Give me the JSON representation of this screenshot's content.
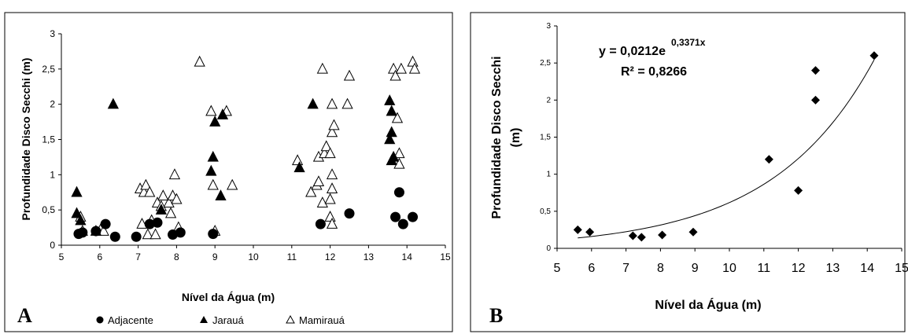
{
  "chart_data": [
    {
      "panel": "A",
      "type": "scatter",
      "xlabel": "Nível da Água (m)",
      "ylabel": "Profundidade Disco Secchi (m)",
      "xlim": [
        5,
        15
      ],
      "ylim": [
        0,
        3
      ],
      "x_ticks": [
        "5",
        "6",
        "7",
        "8",
        "9",
        "10",
        "11",
        "12",
        "13",
        "14",
        "15"
      ],
      "y_ticks": [
        "0",
        "0,5",
        "1",
        "1,5",
        "2",
        "2,5",
        "3"
      ],
      "legend_position": "bottom",
      "grid": false,
      "series": [
        {
          "name": "Adjacente",
          "marker": "circle",
          "points": [
            [
              5.45,
              0.16
            ],
            [
              5.55,
              0.18
            ],
            [
              5.9,
              0.2
            ],
            [
              6.15,
              0.3
            ],
            [
              6.4,
              0.12
            ],
            [
              6.95,
              0.12
            ],
            [
              7.3,
              0.3
            ],
            [
              7.5,
              0.32
            ],
            [
              7.9,
              0.15
            ],
            [
              8.1,
              0.18
            ],
            [
              8.95,
              0.16
            ],
            [
              11.75,
              0.3
            ],
            [
              12.5,
              0.45
            ],
            [
              13.7,
              0.4
            ],
            [
              13.8,
              0.75
            ],
            [
              13.9,
              0.3
            ],
            [
              14.15,
              0.4
            ]
          ]
        },
        {
          "name": "Jarauá",
          "marker": "filled-triangle",
          "points": [
            [
              5.4,
              0.75
            ],
            [
              5.4,
              0.45
            ],
            [
              5.5,
              0.35
            ],
            [
              5.9,
              0.2
            ],
            [
              6.35,
              2.0
            ],
            [
              7.6,
              0.5
            ],
            [
              8.9,
              1.05
            ],
            [
              8.95,
              1.25
            ],
            [
              9.0,
              1.75
            ],
            [
              9.15,
              0.7
            ],
            [
              9.2,
              1.85
            ],
            [
              11.2,
              1.1
            ],
            [
              11.55,
              2.0
            ],
            [
              13.55,
              2.05
            ],
            [
              13.6,
              1.9
            ],
            [
              13.55,
              1.5
            ],
            [
              13.6,
              1.6
            ],
            [
              13.6,
              1.2
            ],
            [
              13.65,
              1.25
            ]
          ]
        },
        {
          "name": "Mamirauá",
          "marker": "open-triangle",
          "points": [
            [
              5.5,
              0.4
            ],
            [
              5.55,
              0.2
            ],
            [
              6.05,
              0.25
            ],
            [
              6.1,
              0.2
            ],
            [
              7.05,
              0.8
            ],
            [
              7.15,
              0.75
            ],
            [
              7.2,
              0.85
            ],
            [
              7.3,
              0.75
            ],
            [
              7.1,
              0.3
            ],
            [
              7.25,
              0.15
            ],
            [
              7.35,
              0.35
            ],
            [
              7.45,
              0.15
            ],
            [
              7.5,
              0.6
            ],
            [
              7.6,
              0.55
            ],
            [
              7.65,
              0.7
            ],
            [
              7.8,
              0.6
            ],
            [
              7.85,
              0.45
            ],
            [
              7.9,
              0.7
            ],
            [
              7.95,
              1.0
            ],
            [
              8.0,
              0.65
            ],
            [
              8.05,
              0.25
            ],
            [
              8.6,
              2.6
            ],
            [
              8.9,
              1.9
            ],
            [
              8.95,
              0.85
            ],
            [
              9.0,
              0.2
            ],
            [
              9.3,
              1.9
            ],
            [
              9.45,
              0.85
            ],
            [
              11.15,
              1.2
            ],
            [
              11.5,
              0.75
            ],
            [
              11.65,
              0.85
            ],
            [
              11.7,
              0.9
            ],
            [
              11.7,
              1.25
            ],
            [
              11.8,
              2.5
            ],
            [
              11.85,
              1.3
            ],
            [
              11.8,
              0.6
            ],
            [
              11.9,
              1.4
            ],
            [
              12.0,
              0.65
            ],
            [
              12.0,
              1.3
            ],
            [
              12.05,
              2.0
            ],
            [
              12.05,
              1.6
            ],
            [
              12.1,
              1.7
            ],
            [
              12.05,
              1.0
            ],
            [
              12.05,
              0.8
            ],
            [
              12.0,
              0.4
            ],
            [
              12.05,
              0.3
            ],
            [
              12.45,
              2.0
            ],
            [
              12.5,
              2.4
            ],
            [
              13.65,
              2.5
            ],
            [
              13.7,
              2.4
            ],
            [
              13.75,
              1.8
            ],
            [
              13.8,
              1.3
            ],
            [
              13.8,
              1.15
            ],
            [
              13.85,
              2.5
            ],
            [
              14.15,
              2.6
            ],
            [
              14.2,
              2.5
            ]
          ]
        }
      ]
    },
    {
      "panel": "B",
      "type": "scatter",
      "xlabel": "Nível da Água (m)",
      "ylabel": "Profundidade Disco Secchi (m)",
      "xlim": [
        5,
        15
      ],
      "ylim": [
        0,
        3
      ],
      "x_ticks": [
        "5",
        "6",
        "7",
        "8",
        "9",
        "10",
        "11",
        "12",
        "13",
        "14",
        "15"
      ],
      "y_ticks": [
        "0",
        "0,5",
        "1",
        "1,5",
        "2",
        "2,5",
        "3"
      ],
      "grid": false,
      "equation": "y = 0,0212e",
      "equation_exponent": "0,3371x",
      "r_squared": "R² = 0,8266",
      "trendline": {
        "type": "exponential",
        "a": 0.0212,
        "b": 0.3371,
        "x_range": [
          5.6,
          14.2
        ]
      },
      "series": [
        {
          "marker": "diamond",
          "points": [
            [
              5.6,
              0.25
            ],
            [
              5.95,
              0.22
            ],
            [
              7.2,
              0.17
            ],
            [
              7.45,
              0.15
            ],
            [
              8.05,
              0.18
            ],
            [
              8.95,
              0.22
            ],
            [
              11.15,
              1.2
            ],
            [
              12.0,
              0.78
            ],
            [
              12.5,
              2.4
            ],
            [
              12.5,
              2.0
            ],
            [
              14.2,
              2.6
            ]
          ]
        }
      ]
    }
  ]
}
